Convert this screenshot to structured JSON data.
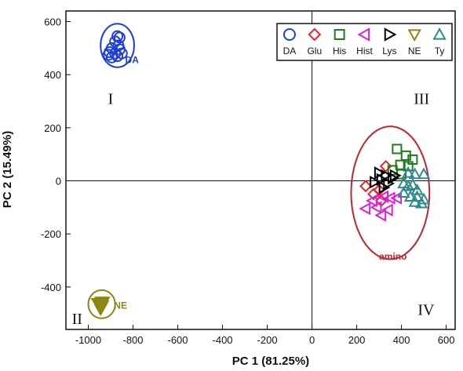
{
  "chart_data": {
    "type": "scatter",
    "title": "",
    "xlabel": "PC 1 (81.25%)",
    "ylabel": "PC 2 (15.49%)",
    "xlim": [
      -1100,
      640
    ],
    "ylim": [
      -560,
      640
    ],
    "x_ticks": [
      -1000,
      -800,
      -600,
      -400,
      -200,
      0,
      200,
      400,
      600
    ],
    "y_ticks": [
      600,
      400,
      200,
      0,
      -200,
      -400
    ],
    "reference_lines": {
      "x": 0,
      "y": 0
    },
    "grid": false,
    "legend_position": "top-right",
    "quadrant_labels": [
      {
        "text": "I",
        "x": -900,
        "y": 290
      },
      {
        "text": "III",
        "x": 490,
        "y": 290
      },
      {
        "text": "II",
        "x": -1050,
        "y": -540
      },
      {
        "text": "IV",
        "x": 510,
        "y": -505
      }
    ],
    "clusters": [
      {
        "label": "DA",
        "cx": -870,
        "cy": 510,
        "rx": 75,
        "ry": 82,
        "color": "#1f3fd6",
        "label_x": -835,
        "label_y": 455
      },
      {
        "label": "NE",
        "cx": -940,
        "cy": -465,
        "rx": 60,
        "ry": 53,
        "color": "#8b8712",
        "label_x": -885,
        "label_y": -470
      },
      {
        "label": "amino",
        "cx": 350,
        "cy": -45,
        "rx": 175,
        "ry": 250,
        "color": "#c0272d",
        "label_x": 300,
        "label_y": -285
      }
    ],
    "series": [
      {
        "name": "DA",
        "marker": "circle",
        "color": "#1f3fd6",
        "points": [
          [
            -870,
            545
          ],
          [
            -860,
            540
          ],
          [
            -880,
            525
          ],
          [
            -865,
            510
          ],
          [
            -895,
            500
          ],
          [
            -860,
            495
          ],
          [
            -905,
            485
          ],
          [
            -880,
            480
          ],
          [
            -850,
            480
          ],
          [
            -910,
            475
          ],
          [
            -870,
            470
          ],
          [
            -895,
            465
          ]
        ]
      },
      {
        "name": "Glu",
        "marker": "diamond",
        "color": "#e3262c",
        "points": [
          [
            240,
            -20
          ],
          [
            300,
            -35
          ],
          [
            330,
            55
          ],
          [
            275,
            -50
          ],
          [
            310,
            -75
          ]
        ]
      },
      {
        "name": "His",
        "marker": "square",
        "color": "#1e7a1e",
        "points": [
          [
            380,
            120
          ],
          [
            420,
            95
          ],
          [
            450,
            80
          ],
          [
            395,
            60
          ],
          [
            360,
            40
          ],
          [
            430,
            55
          ],
          [
            400,
            25
          ]
        ]
      },
      {
        "name": "Hist",
        "marker": "triangle-left",
        "color": "#e020d8",
        "points": [
          [
            350,
            -65
          ],
          [
            320,
            -60
          ],
          [
            380,
            -65
          ],
          [
            240,
            -105
          ],
          [
            290,
            -100
          ],
          [
            340,
            -110
          ],
          [
            310,
            -130
          ],
          [
            270,
            -75
          ]
        ]
      },
      {
        "name": "Lys",
        "marker": "triangle-right",
        "color": "#000000",
        "points": [
          [
            300,
            30
          ],
          [
            330,
            20
          ],
          [
            360,
            10
          ],
          [
            310,
            5
          ],
          [
            340,
            -10
          ],
          [
            320,
            -25
          ],
          [
            280,
            -5
          ],
          [
            370,
            20
          ]
        ]
      },
      {
        "name": "NE",
        "marker": "triangle-down",
        "color": "#8b8712",
        "points": [
          [
            -960,
            -460
          ],
          [
            -945,
            -455
          ],
          [
            -930,
            -455
          ],
          [
            -950,
            -470
          ],
          [
            -935,
            -470
          ],
          [
            -945,
            -485
          ]
        ]
      },
      {
        "name": "Ty",
        "marker": "triangle-up",
        "color": "#2e8b8b",
        "points": [
          [
            430,
            30
          ],
          [
            460,
            25
          ],
          [
            500,
            25
          ],
          [
            410,
            -10
          ],
          [
            450,
            -15
          ],
          [
            470,
            -35
          ],
          [
            410,
            -45
          ],
          [
            440,
            -60
          ],
          [
            470,
            -60
          ],
          [
            490,
            -85
          ],
          [
            460,
            -80
          ],
          [
            500,
            -70
          ],
          [
            430,
            -20
          ]
        ]
      }
    ]
  }
}
